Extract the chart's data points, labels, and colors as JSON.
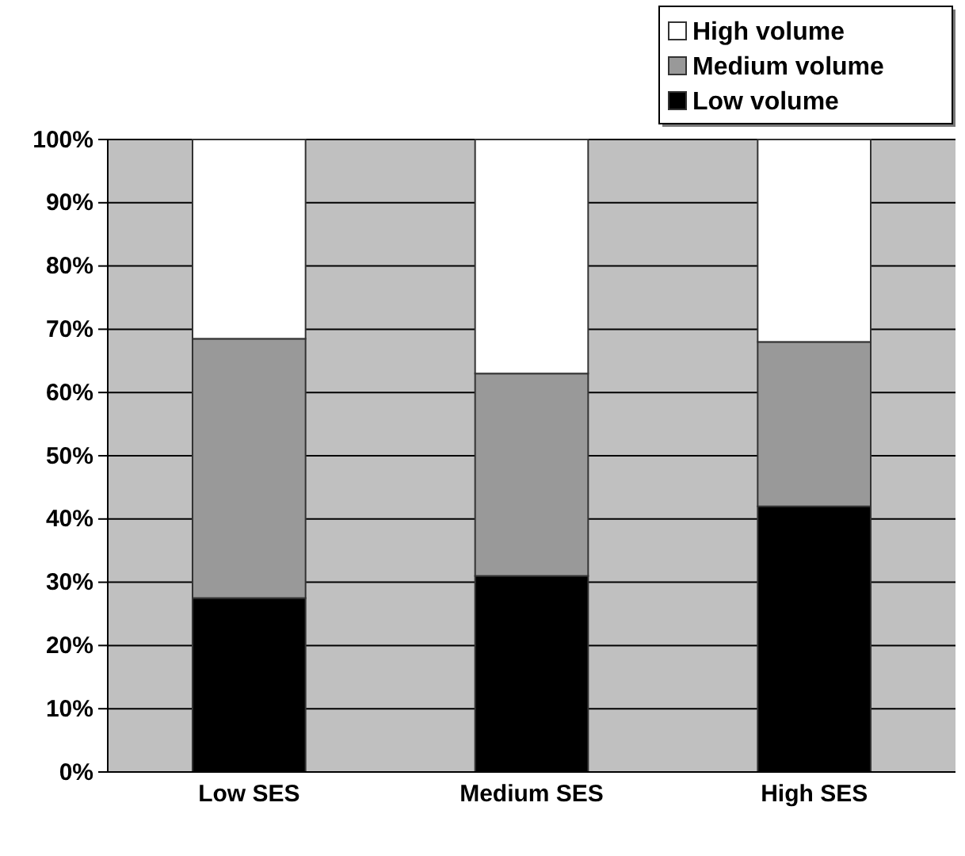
{
  "chart_data": {
    "type": "bar",
    "stacked": true,
    "categories": [
      "Low SES",
      "Medium SES",
      "High SES"
    ],
    "series": [
      {
        "name": "Low volume",
        "color": "#000000",
        "values": [
          27.5,
          31,
          42
        ]
      },
      {
        "name": "Medium volume",
        "color": "#999999",
        "values": [
          41,
          32,
          26
        ]
      },
      {
        "name": "High volume",
        "color": "#ffffff",
        "values": [
          31.5,
          37,
          32
        ]
      }
    ],
    "ylim": [
      0,
      100
    ],
    "yticks": [
      {
        "value": 0,
        "label": "0%"
      },
      {
        "value": 10,
        "label": "10%"
      },
      {
        "value": 20,
        "label": "20%"
      },
      {
        "value": 30,
        "label": "30%"
      },
      {
        "value": 40,
        "label": "40%"
      },
      {
        "value": 50,
        "label": "50%"
      },
      {
        "value": 60,
        "label": "60%"
      },
      {
        "value": 70,
        "label": "70%"
      },
      {
        "value": 80,
        "label": "80%"
      },
      {
        "value": 90,
        "label": "90%"
      },
      {
        "value": 100,
        "label": "100%"
      }
    ],
    "grid": "y",
    "legend": "top right"
  }
}
